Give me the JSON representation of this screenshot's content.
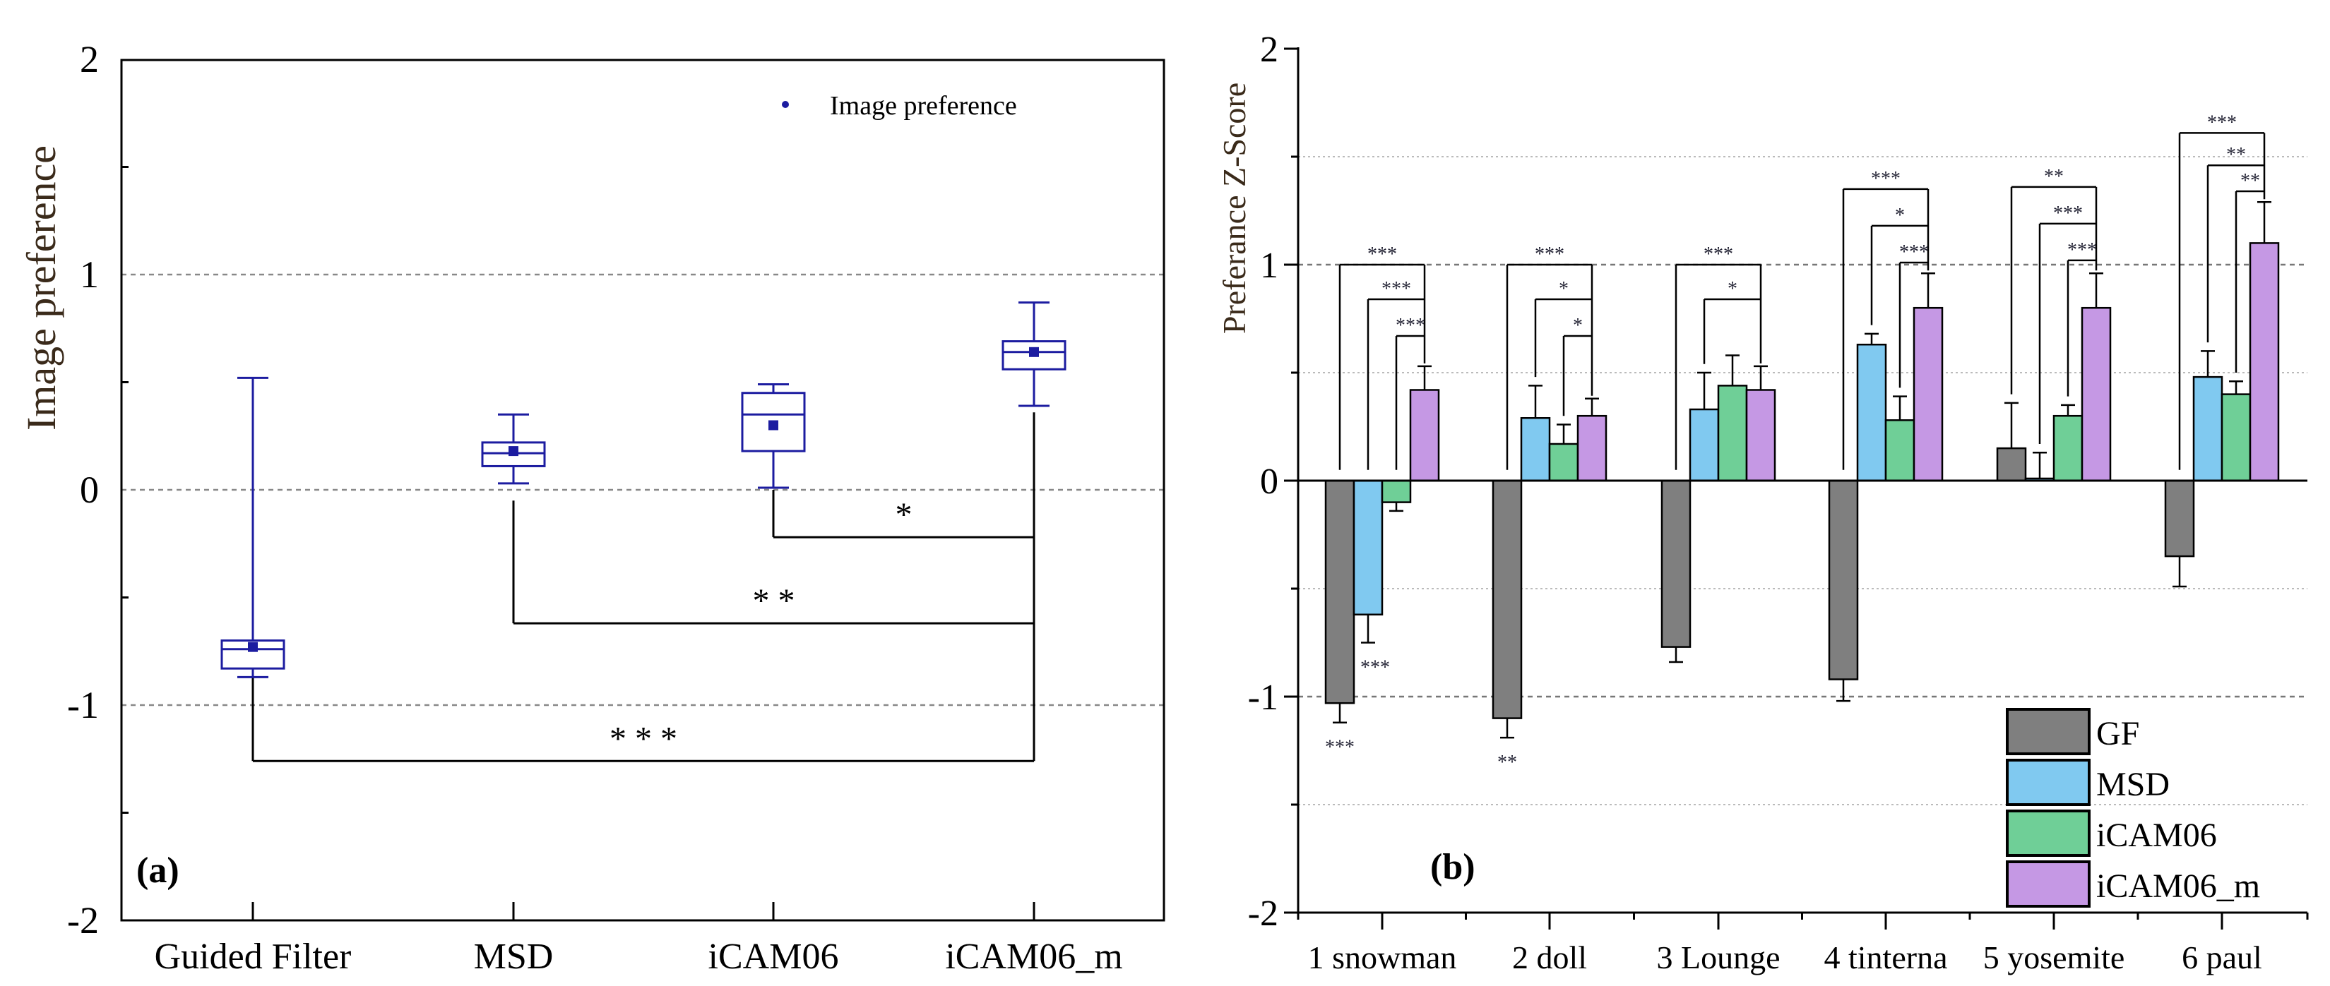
{
  "chart_data": [
    {
      "type": "box",
      "panel_label": "(a)",
      "ylabel": "Image preference",
      "ylim": [
        -2,
        2
      ],
      "yticks": [
        "2",
        "1",
        "0",
        "-1",
        "-2"
      ],
      "ytick_values": [
        2,
        1,
        0,
        -1,
        -2
      ],
      "grid_values": [
        1,
        0,
        -1
      ],
      "legend": {
        "label": "Image preference",
        "placement": "top-right"
      },
      "categories": [
        "Guided Filter",
        "MSD",
        "iCAM06",
        "iCAM06_m"
      ],
      "boxes": [
        {
          "whisker_high": 0.52,
          "q3": -0.7,
          "median": -0.74,
          "q1": -0.83,
          "whisker_low": -0.87,
          "mean": -0.73
        },
        {
          "whisker_high": 0.35,
          "q3": 0.22,
          "median": 0.17,
          "q1": 0.11,
          "whisker_low": 0.03,
          "mean": 0.18
        },
        {
          "whisker_high": 0.49,
          "q3": 0.45,
          "median": 0.35,
          "q1": 0.18,
          "whisker_low": 0.01,
          "mean": 0.3
        },
        {
          "whisker_high": 0.87,
          "q3": 0.69,
          "median": 0.64,
          "q1": 0.56,
          "whisker_low": 0.39,
          "mean": 0.64
        }
      ],
      "significance": [
        {
          "from": 2,
          "to": 3,
          "level": -0.22,
          "start": 0.0,
          "label": "*"
        },
        {
          "from": 1,
          "to": 3,
          "level": -0.62,
          "start": -0.05,
          "label": "* *"
        },
        {
          "from": 0,
          "to": 3,
          "level": -1.26,
          "start": -0.87,
          "label": "* * *"
        }
      ],
      "colors": {
        "box": "#1c1ca0"
      }
    },
    {
      "type": "bar",
      "panel_label": "(b)",
      "ylabel": "Preferance Z-Score",
      "ylim": [
        -2,
        2
      ],
      "yticks": [
        "2",
        "1",
        "0",
        "-1",
        "-2"
      ],
      "ytick_values": [
        2,
        1,
        0,
        -1,
        -2
      ],
      "categories": [
        "1 snowman",
        "2 doll",
        "3 Lounge",
        "4 tinterna",
        "5 yosemite",
        "6 paul"
      ],
      "legend_placement": "bottom-right",
      "series": [
        {
          "name": "GF",
          "color": "#7f7f7f",
          "values": [
            -1.03,
            -1.1,
            -0.77,
            -0.92,
            0.15,
            -0.35
          ],
          "error_end": [
            -1.12,
            -1.19,
            -0.84,
            -1.02,
            0.36,
            -0.49
          ]
        },
        {
          "name": "MSD",
          "color": "#80c9f0",
          "values": [
            -0.62,
            0.29,
            0.33,
            0.63,
            0.01,
            0.48
          ],
          "error_end": [
            -0.75,
            0.44,
            0.5,
            0.68,
            0.13,
            0.6
          ]
        },
        {
          "name": "iCAM06",
          "color": "#6fcf97",
          "values": [
            -0.1,
            0.17,
            0.44,
            0.28,
            0.3,
            0.4
          ],
          "error_end": [
            -0.14,
            0.26,
            0.58,
            0.39,
            0.35,
            0.46
          ]
        },
        {
          "name": "iCAM06_m",
          "color": "#c598e4",
          "values": [
            0.42,
            0.3,
            0.42,
            0.8,
            0.8,
            1.1
          ],
          "error_end": [
            0.53,
            0.38,
            0.53,
            0.96,
            0.96,
            1.29
          ]
        }
      ],
      "significance": [
        [
          {
            "from": 0,
            "level": 1.0,
            "label": "***"
          },
          {
            "from": 1,
            "level": 0.84,
            "label": "***"
          },
          {
            "from": 2,
            "level": 0.67,
            "label": "***"
          }
        ],
        [
          {
            "from": 0,
            "level": 1.0,
            "label": "***"
          },
          {
            "from": 1,
            "level": 0.84,
            "label": "*"
          },
          {
            "from": 2,
            "level": 0.67,
            "label": "*"
          }
        ],
        [
          {
            "from": 0,
            "level": 1.0,
            "label": "***"
          },
          {
            "from": 1,
            "level": 0.84,
            "label": "*"
          }
        ],
        [
          {
            "from": 0,
            "level": 1.35,
            "label": "***"
          },
          {
            "from": 1,
            "level": 1.18,
            "label": "*"
          },
          {
            "from": 2,
            "level": 1.01,
            "label": "***"
          }
        ],
        [
          {
            "from": 0,
            "level": 1.36,
            "label": "**"
          },
          {
            "from": 1,
            "level": 1.19,
            "label": "***"
          },
          {
            "from": 2,
            "level": 1.02,
            "label": "***"
          }
        ],
        [
          {
            "from": 0,
            "level": 1.61,
            "label": "***"
          },
          {
            "from": 1,
            "level": 1.46,
            "label": "**"
          },
          {
            "from": 2,
            "level": 1.34,
            "label": "**"
          }
        ]
      ],
      "below_labels": [
        {
          "group": 0,
          "series": 0,
          "label": "***"
        },
        {
          "group": 0,
          "series": 1,
          "label": "***"
        },
        {
          "group": 1,
          "series": 0,
          "label": "**"
        }
      ]
    }
  ]
}
